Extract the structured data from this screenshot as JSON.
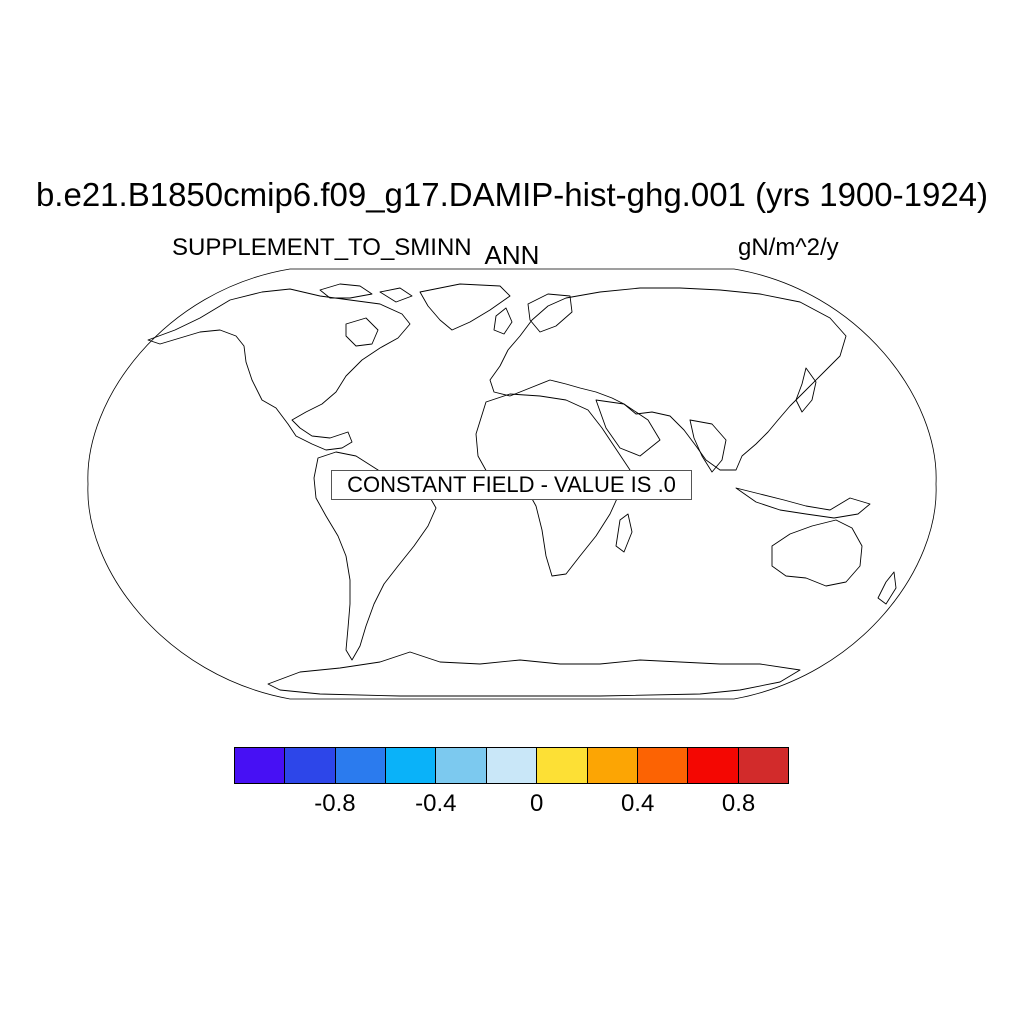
{
  "title": "b.e21.B1850cmip6.f09_g17.DAMIP-hist-ghg.001 (yrs 1900-1924)",
  "left_label": "SUPPLEMENT_TO_SMINN",
  "center_label": "ANN",
  "right_label": "gN/m^2/y",
  "map": {
    "projection": "robinson",
    "message": "CONSTANT FIELD - VALUE IS .0"
  },
  "colorbar": {
    "colors": [
      "#4710F4",
      "#2D46E9",
      "#2B7BEE",
      "#0AB2F9",
      "#7CC9EF",
      "#C9E7F8",
      "#FDE035",
      "#FCA504",
      "#FC6303",
      "#F40702",
      "#D22B2B"
    ],
    "tick_labels": [
      "-0.8",
      "-0.4",
      "0",
      "0.4",
      "0.8"
    ]
  }
}
